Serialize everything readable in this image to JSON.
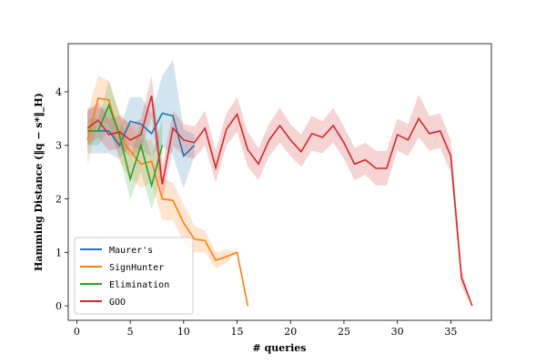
{
  "chart_data": {
    "type": "line",
    "xlabel": "# queries",
    "ylabel": "Hamming Distance (‖q − s*‖_H)",
    "xlim": [
      -0.8,
      38.8
    ],
    "ylim": [
      -0.27,
      4.9
    ],
    "xticks": [
      0,
      5,
      10,
      15,
      20,
      25,
      30,
      35
    ],
    "yticks": [
      0,
      1,
      2,
      3,
      4
    ],
    "legend": "lower left",
    "series": [
      {
        "name": "Maurer's",
        "color": "#1f77b4",
        "x": [
          1,
          2,
          3,
          4,
          5,
          6,
          7,
          8,
          9,
          10,
          11
        ],
        "values": [
          3.27,
          3.27,
          3.27,
          3.0,
          3.45,
          3.4,
          3.22,
          3.6,
          3.55,
          2.8,
          3.0
        ],
        "lower": [
          2.85,
          2.85,
          2.85,
          2.75,
          3.0,
          2.9,
          2.8,
          3.0,
          2.8,
          2.2,
          2.8
        ],
        "upper": [
          3.7,
          3.7,
          3.7,
          3.3,
          3.9,
          3.9,
          3.6,
          4.3,
          4.6,
          3.3,
          3.2
        ]
      },
      {
        "name": "SignHunter",
        "color": "#ff7f0e",
        "x": [
          1,
          2,
          3,
          4,
          5,
          6,
          7,
          8,
          9,
          10,
          11,
          12,
          13,
          14,
          15,
          16
        ],
        "values": [
          3.1,
          3.88,
          3.85,
          3.15,
          2.9,
          2.65,
          2.7,
          2.0,
          1.97,
          1.55,
          1.25,
          1.22,
          0.85,
          0.92,
          1.0,
          0.0
        ],
        "lower": [
          2.6,
          3.5,
          3.4,
          2.7,
          2.4,
          2.2,
          2.3,
          1.6,
          1.6,
          1.2,
          1.0,
          1.0,
          0.7,
          0.8,
          1.0,
          0.0
        ],
        "upper": [
          3.6,
          4.3,
          4.2,
          3.6,
          3.4,
          3.1,
          3.1,
          2.4,
          2.3,
          1.9,
          1.5,
          1.4,
          1.0,
          1.05,
          1.0,
          0.0
        ]
      },
      {
        "name": "Elimination",
        "color": "#2ca02c",
        "x": [
          1,
          2,
          3,
          4,
          5,
          6,
          7,
          8
        ],
        "values": [
          3.27,
          3.27,
          3.75,
          3.2,
          2.37,
          3.0,
          2.25,
          3.0
        ],
        "lower": [
          3.0,
          3.0,
          3.3,
          2.8,
          2.0,
          2.5,
          1.8,
          2.5
        ],
        "upper": [
          3.5,
          3.5,
          4.2,
          3.6,
          2.8,
          3.4,
          2.8,
          3.5
        ]
      },
      {
        "name": "GOO",
        "color": "#d62728",
        "x": [
          1,
          2,
          3,
          4,
          5,
          6,
          7,
          8,
          9,
          10,
          11,
          12,
          13,
          14,
          15,
          16,
          17,
          18,
          19,
          20,
          21,
          22,
          23,
          24,
          25,
          26,
          27,
          28,
          29,
          30,
          31,
          32,
          33,
          34,
          35,
          36,
          37
        ],
        "values": [
          3.32,
          3.47,
          3.2,
          3.25,
          3.1,
          3.2,
          3.93,
          2.27,
          3.32,
          3.1,
          3.05,
          3.32,
          2.58,
          3.3,
          3.58,
          2.92,
          2.65,
          3.1,
          3.37,
          3.1,
          2.88,
          3.22,
          3.15,
          3.37,
          3.05,
          2.65,
          2.73,
          2.57,
          2.57,
          3.2,
          3.1,
          3.5,
          3.22,
          3.27,
          2.8,
          0.53,
          0.0
        ],
        "lower": [
          3.0,
          3.15,
          2.9,
          2.95,
          2.8,
          2.9,
          3.55,
          1.95,
          3.0,
          2.8,
          2.75,
          3.0,
          2.3,
          3.0,
          3.25,
          2.6,
          2.35,
          2.8,
          3.05,
          2.8,
          2.6,
          2.9,
          2.85,
          3.05,
          2.75,
          2.35,
          2.45,
          2.25,
          2.25,
          2.9,
          2.8,
          3.15,
          2.9,
          2.95,
          2.5,
          0.35,
          0.0
        ],
        "upper": [
          3.65,
          3.8,
          3.5,
          3.55,
          3.4,
          3.5,
          4.3,
          2.6,
          3.65,
          3.4,
          3.35,
          3.65,
          2.9,
          3.6,
          3.9,
          3.25,
          2.95,
          3.4,
          3.7,
          3.4,
          3.2,
          3.55,
          3.45,
          3.7,
          3.35,
          2.95,
          3.05,
          2.9,
          2.9,
          3.5,
          3.4,
          3.95,
          3.55,
          3.6,
          3.1,
          0.7,
          0.0
        ]
      }
    ]
  }
}
